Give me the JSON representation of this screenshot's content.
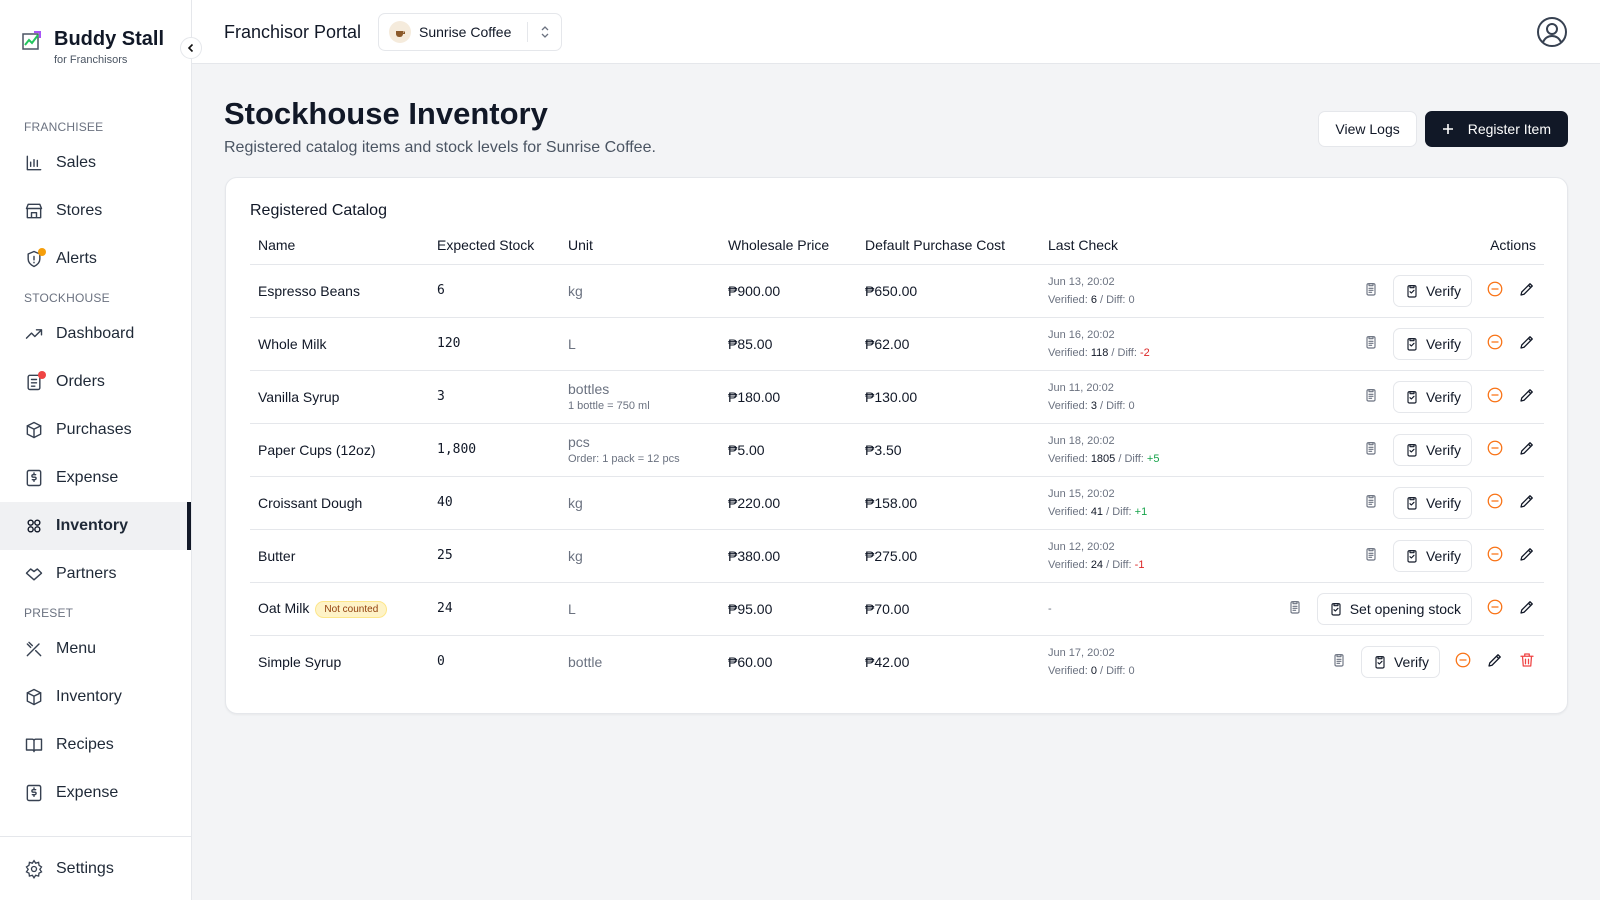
{
  "brand": {
    "name": "Buddy Stall",
    "tagline": "for Franchisors"
  },
  "sidebar": {
    "sections": [
      {
        "title": "FRANCHISEE",
        "items": [
          {
            "label": "Sales"
          },
          {
            "label": "Stores"
          },
          {
            "label": "Alerts",
            "dot": "#f59e0b"
          }
        ]
      },
      {
        "title": "STOCKHOUSE",
        "items": [
          {
            "label": "Dashboard"
          },
          {
            "label": "Orders",
            "dot": "#ef4444"
          },
          {
            "label": "Purchases"
          },
          {
            "label": "Expense"
          },
          {
            "label": "Inventory",
            "active": true
          },
          {
            "label": "Partners"
          }
        ]
      },
      {
        "title": "PRESET",
        "items": [
          {
            "label": "Menu"
          },
          {
            "label": "Inventory"
          },
          {
            "label": "Recipes"
          },
          {
            "label": "Expense"
          }
        ]
      }
    ],
    "footer": "Settings"
  },
  "header": {
    "portal": "Franchisor Portal",
    "store": "Sunrise Coffee"
  },
  "page": {
    "title": "Stockhouse Inventory",
    "subtitle": "Registered catalog items and stock levels for Sunrise Coffee.",
    "buttons": [
      "View Logs",
      "Register Item"
    ]
  },
  "table": {
    "title": "Registered Catalog",
    "columns": [
      "Name",
      "Expected Stock",
      "Unit",
      "Wholesale Price",
      "Default Purchase Cost",
      "Last Check",
      "Actions"
    ],
    "check_labels": {
      "verified": "Verified:",
      "diff": "/ Diff:"
    },
    "rows": [
      {
        "name": "Espresso Beans",
        "expected": "6",
        "unit": "kg",
        "wholesale": "₱900.00",
        "cost": "₱650.00",
        "check": {
          "date": "Jun 13, 20:02",
          "verified": "6",
          "diff": "0"
        },
        "action": "Verify"
      },
      {
        "name": "Whole Milk",
        "expected": "120",
        "unit": "L",
        "wholesale": "₱85.00",
        "cost": "₱62.00",
        "check": {
          "date": "Jun 16, 20:02",
          "verified": "118",
          "diff": "-2"
        },
        "action": "Verify"
      },
      {
        "name": "Vanilla Syrup",
        "expected": "3",
        "unit": "bottles",
        "unit_note": "1 bottle = 750 ml",
        "wholesale": "₱180.00",
        "cost": "₱130.00",
        "check": {
          "date": "Jun 11, 20:02",
          "verified": "3",
          "diff": "0"
        },
        "action": "Verify"
      },
      {
        "name": "Paper Cups (12oz)",
        "expected": "1,800",
        "unit": "pcs",
        "unit_note": "Order: 1 pack = 12 pcs",
        "wholesale": "₱5.00",
        "cost": "₱3.50",
        "check": {
          "date": "Jun 18, 20:02",
          "verified": "1805",
          "diff": "+5"
        },
        "action": "Verify"
      },
      {
        "name": "Croissant Dough",
        "expected": "40",
        "unit": "kg",
        "wholesale": "₱220.00",
        "cost": "₱158.00",
        "check": {
          "date": "Jun 15, 20:02",
          "verified": "41",
          "diff": "+1"
        },
        "action": "Verify"
      },
      {
        "name": "Butter",
        "expected": "25",
        "unit": "kg",
        "wholesale": "₱380.00",
        "cost": "₱275.00",
        "check": {
          "date": "Jun 12, 20:02",
          "verified": "24",
          "diff": "-1"
        },
        "action": "Verify"
      },
      {
        "name": "Oat Milk",
        "badge": "Not counted",
        "expected": "24",
        "unit": "L",
        "wholesale": "₱95.00",
        "cost": "₱70.00",
        "check_empty": "-",
        "action": "Set opening stock"
      },
      {
        "name": "Simple Syrup",
        "expected": "0",
        "unit": "bottle",
        "wholesale": "₱60.00",
        "cost": "₱42.00",
        "check": {
          "date": "Jun 17, 20:02",
          "verified": "0",
          "diff": "0"
        },
        "action": "Verify",
        "deletable": true
      }
    ]
  }
}
